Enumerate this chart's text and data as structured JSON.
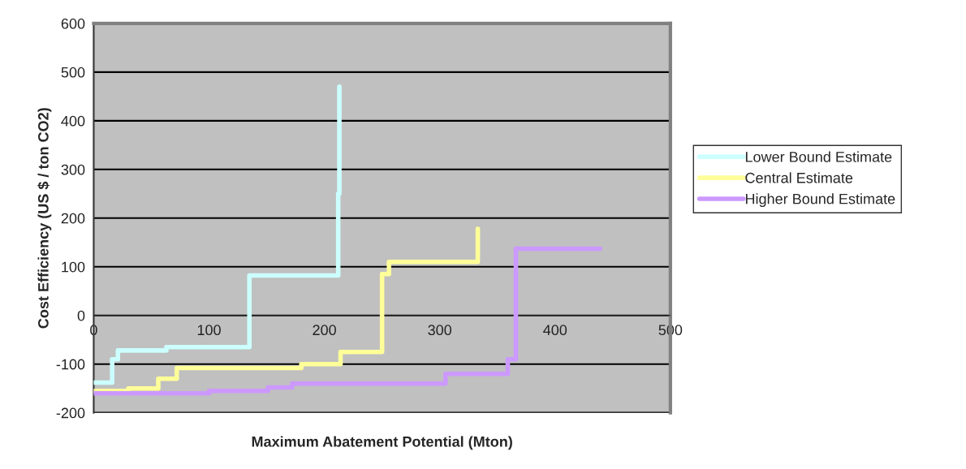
{
  "chart_data": {
    "type": "step",
    "xlabel": "Maximum Abatement Potential (Mton)",
    "ylabel": "Cost Efficiency (US $ / ton CO2)",
    "xlim": [
      0,
      500
    ],
    "xticks": [
      0,
      100,
      200,
      300,
      400,
      500
    ],
    "ylim": [
      -200,
      600
    ],
    "yticks": [
      -200,
      -100,
      0,
      100,
      200,
      300,
      400,
      500,
      600
    ],
    "grid": "y",
    "legend": "right",
    "series": [
      {
        "name": "Lower Bound Estimate",
        "color": "#ccffff",
        "x": [
          0,
          16,
          21,
          63,
          135,
          212,
          213,
          213
        ],
        "values": [
          -138,
          -90,
          -72,
          -65,
          82,
          250,
          470,
          470
        ]
      },
      {
        "name": "Central Estimate",
        "color": "#ffff99",
        "x": [
          0,
          30,
          56,
          72,
          180,
          214,
          250,
          256,
          333,
          333
        ],
        "values": [
          -155,
          -150,
          -130,
          -108,
          -100,
          -75,
          85,
          110,
          178,
          178
        ]
      },
      {
        "name": "Higher Bound Estimate",
        "color": "#cc99ff",
        "x": [
          0,
          100,
          151,
          172,
          305,
          359,
          366,
          439
        ],
        "values": [
          -160,
          -155,
          -148,
          -140,
          -120,
          -90,
          137,
          137
        ]
      }
    ]
  }
}
